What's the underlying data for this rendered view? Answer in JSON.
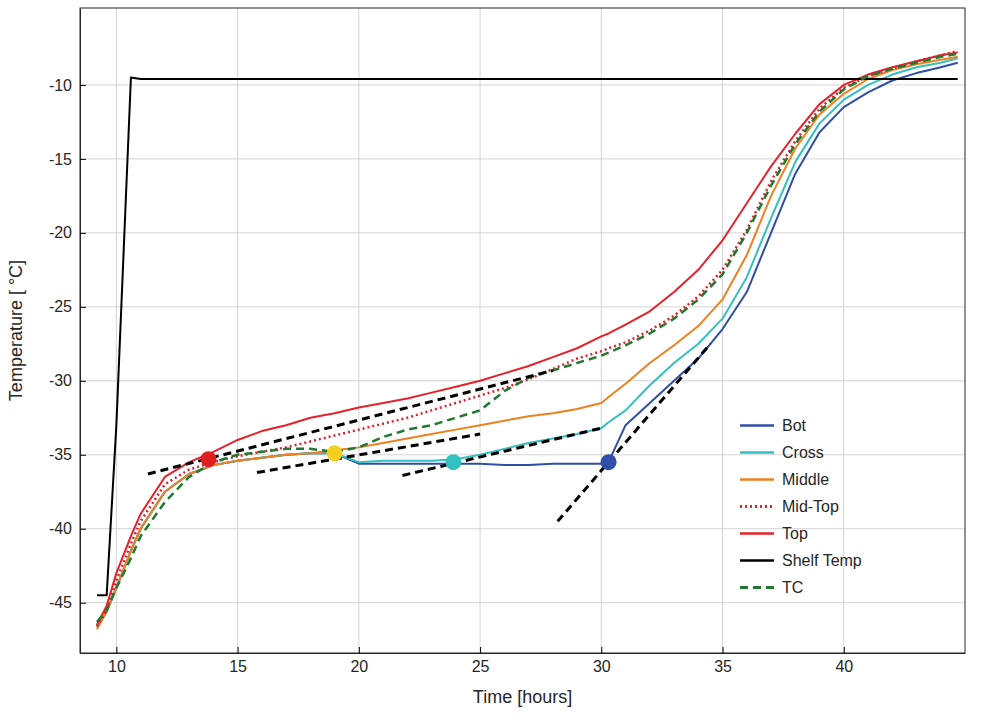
{
  "chart_data": {
    "type": "line",
    "x_label": "Time [hours]",
    "y_label": "Temperature [ °C]",
    "xlim": [
      8.5,
      45
    ],
    "ylim": [
      -48.4,
      -4.8
    ],
    "xticks": [
      10,
      15,
      20,
      25,
      30,
      35,
      40
    ],
    "yticks": [
      -45,
      -40,
      -35,
      -30,
      -25,
      -20,
      -15,
      -10
    ],
    "grid": true,
    "legend": "lower right",
    "x": [
      9.2,
      9.6,
      10,
      10.6,
      11,
      12,
      13,
      14,
      15,
      16,
      17,
      18,
      19,
      20,
      21,
      22,
      23,
      24,
      25,
      26,
      27,
      28,
      29,
      30,
      30.3,
      31,
      32,
      33,
      34,
      35,
      36,
      37,
      38,
      39,
      40,
      41,
      42,
      43,
      44,
      44.7
    ],
    "series": [
      {
        "name": "Bot",
        "color": "#2e4fa8",
        "line_style": "solid",
        "values": [
          -46.5,
          -45.6,
          -44,
          -41.5,
          -40,
          -37.5,
          -36.3,
          -35.7,
          -35.4,
          -35.2,
          -35,
          -34.9,
          -34.9,
          -35.6,
          -35.6,
          -35.6,
          -35.6,
          -35.6,
          -35.6,
          -35.7,
          -35.7,
          -35.6,
          -35.6,
          -35.6,
          -35.5,
          -33,
          -31.5,
          -30,
          -28.5,
          -26.5,
          -24,
          -20,
          -16,
          -13.2,
          -11.5,
          -10.5,
          -9.7,
          -9.2,
          -8.8,
          -8.5
        ]
      },
      {
        "name": "Cross",
        "color": "#33c0c0",
        "line_style": "solid",
        "values": [
          -46.7,
          -45.6,
          -44,
          -41.5,
          -40,
          -37.5,
          -36.3,
          -35.7,
          -35.4,
          -35.2,
          -35,
          -34.9,
          -34.9,
          -35.5,
          -35.4,
          -35.4,
          -35.4,
          -35.3,
          -35,
          -34.6,
          -34.2,
          -33.9,
          -33.6,
          -33.2,
          -32.8,
          -32,
          -30.3,
          -28.8,
          -27.5,
          -25.8,
          -23,
          -19,
          -15.2,
          -12.6,
          -11,
          -10,
          -9.3,
          -8.8,
          -8.5,
          -8.2
        ]
      },
      {
        "name": "Middle",
        "color": "#f07f1e",
        "line_style": "solid",
        "values": [
          -46.8,
          -45.6,
          -44,
          -41.5,
          -40,
          -37.5,
          -36.3,
          -35.7,
          -35.4,
          -35.2,
          -35,
          -34.9,
          -34.7,
          -34.5,
          -34.2,
          -33.9,
          -33.6,
          -33.3,
          -33,
          -32.7,
          -32.4,
          -32.2,
          -31.9,
          -31.5,
          -31.1,
          -30.2,
          -28.8,
          -27.6,
          -26.3,
          -24.5,
          -21.5,
          -17.5,
          -14.3,
          -12,
          -10.6,
          -9.6,
          -9,
          -8.6,
          -8.3,
          -8.1
        ]
      },
      {
        "name": "Mid-Top",
        "color": "#e0202a",
        "line_style": "dotted",
        "values": [
          -46.6,
          -45.5,
          -43.5,
          -41,
          -39.5,
          -37,
          -36,
          -35.5,
          -35.1,
          -34.8,
          -34.5,
          -34.1,
          -33.7,
          -33.3,
          -32.9,
          -32.5,
          -32,
          -31.5,
          -31,
          -30.5,
          -29.9,
          -29.2,
          -28.5,
          -28,
          -27.8,
          -27.4,
          -26.6,
          -25.6,
          -24.3,
          -22.5,
          -19.8,
          -16.5,
          -13.8,
          -11.6,
          -10.2,
          -9.4,
          -8.9,
          -8.4,
          -8,
          -7.7
        ]
      },
      {
        "name": "Top",
        "color": "#e8202a",
        "line_style": "solid",
        "values": [
          -46.5,
          -45.2,
          -43,
          -40.5,
          -39,
          -36.5,
          -35.5,
          -34.8,
          -34,
          -33.4,
          -33,
          -32.5,
          -32.2,
          -31.8,
          -31.5,
          -31.2,
          -30.8,
          -30.4,
          -30,
          -29.5,
          -29,
          -28.4,
          -27.8,
          -27,
          -26.8,
          -26.2,
          -25.3,
          -24,
          -22.5,
          -20.5,
          -18,
          -15.5,
          -13.3,
          -11.3,
          -10,
          -9.3,
          -8.8,
          -8.4,
          -8,
          -7.8
        ]
      },
      {
        "name": "Shelf Temp",
        "color": "#000000",
        "line_style": "solid",
        "values": [
          -44.5,
          -44.5,
          -33,
          -9.5,
          -9.6,
          -9.6,
          -9.6,
          -9.6,
          -9.6,
          -9.6,
          -9.6,
          -9.6,
          -9.6,
          -9.6,
          -9.6,
          -9.6,
          -9.6,
          -9.6,
          -9.6,
          -9.6,
          -9.6,
          -9.6,
          -9.6,
          -9.6,
          -9.6,
          -9.6,
          -9.6,
          -9.6,
          -9.6,
          -9.6,
          -9.6,
          -9.6,
          -9.6,
          -9.6,
          -9.6,
          -9.6,
          -9.6,
          -9.6,
          -9.6,
          -9.6
        ]
      },
      {
        "name": "TC",
        "color": "#1f7a30",
        "line_style": "dashed",
        "values": [
          -46.3,
          -45.5,
          -44,
          -42,
          -40.5,
          -38.2,
          -36.5,
          -35.5,
          -35,
          -34.8,
          -34.6,
          -34.6,
          -34.8,
          -34.5,
          -33.8,
          -33.3,
          -33,
          -32.5,
          -32,
          -30.7,
          -29.8,
          -29.3,
          -28.8,
          -28.3,
          -28.1,
          -27.6,
          -26.8,
          -25.8,
          -24.5,
          -22.8,
          -20,
          -16.8,
          -14,
          -11.8,
          -10.3,
          -9.4,
          -8.9,
          -8.5,
          -8.1,
          -7.9
        ]
      }
    ],
    "annotations": [
      {
        "type": "line",
        "color": "#000000",
        "line_style": "dashed",
        "x": [
          11.3,
          28
        ],
        "y": [
          -36.3,
          -29.3
        ]
      },
      {
        "type": "line",
        "color": "#000000",
        "line_style": "dashed",
        "x": [
          15.8,
          25
        ],
        "y": [
          -36.2,
          -33.6
        ]
      },
      {
        "type": "line",
        "color": "#000000",
        "line_style": "dashed",
        "x": [
          21.8,
          30
        ],
        "y": [
          -36.4,
          -33.2
        ]
      },
      {
        "type": "line",
        "color": "#000000",
        "line_style": "dashed",
        "x": [
          28.2,
          34.5
        ],
        "y": [
          -39.5,
          -27.5
        ]
      },
      {
        "type": "point",
        "color": "#e02020",
        "x": 13.8,
        "y": -35.3
      },
      {
        "type": "point",
        "color": "#f5d020",
        "x": 19,
        "y": -34.9
      },
      {
        "type": "point",
        "color": "#33c0c0",
        "x": 23.9,
        "y": -35.5
      },
      {
        "type": "point",
        "color": "#2e4fa8",
        "x": 30.3,
        "y": -35.5
      }
    ]
  }
}
